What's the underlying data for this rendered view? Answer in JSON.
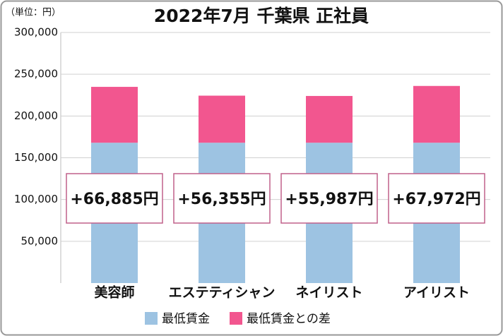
{
  "chart_data": {
    "type": "stacked_bar",
    "title": "2022年7月 千葉県 正社員",
    "unit_note": "（単位：円）",
    "categories": [
      "美容師",
      "エステティシャン",
      "ネイリスト",
      "アイリスト"
    ],
    "series": [
      {
        "name": "最低賃金",
        "color": "#9dc3e2",
        "values": [
          168000,
          168000,
          168000,
          168000
        ]
      },
      {
        "name": "最低賃金との差",
        "color": "#f2568f",
        "values": [
          66885,
          56355,
          55987,
          67972
        ],
        "value_labels": [
          "+66,885円",
          "+56,355円",
          "+55,987円",
          "+67,972円"
        ]
      }
    ],
    "ylim": [
      0,
      300000
    ],
    "yticks": [
      {
        "value": 50000,
        "label": "50,000"
      },
      {
        "value": 100000,
        "label": "100,000"
      },
      {
        "value": 150000,
        "label": "150,000"
      },
      {
        "value": 200000,
        "label": "200,000"
      },
      {
        "value": 250000,
        "label": "250,000"
      },
      {
        "value": 300000,
        "label": "300,000"
      }
    ],
    "grid": true,
    "legend": "bottom"
  }
}
